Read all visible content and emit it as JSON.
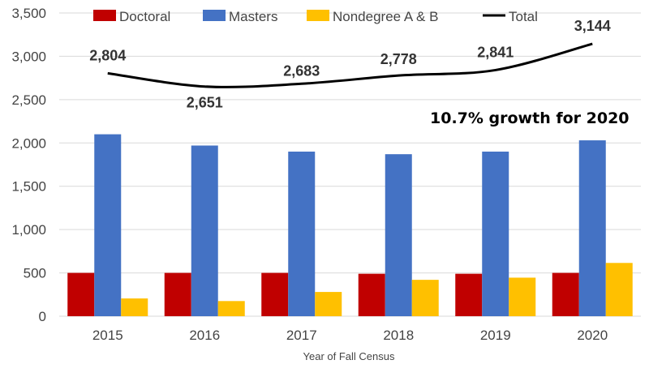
{
  "colors": {
    "doctoral": "#c00000",
    "masters": "#4472c4",
    "nondegree": "#ffc000",
    "total": "#000000",
    "grid": "#d9d9d9",
    "text": "#444444"
  },
  "chart_data": {
    "type": "bar",
    "title": "",
    "xlabel": "Year of Fall Census",
    "ylabel": "",
    "ylim": [
      0,
      3500
    ],
    "yticks": [
      0,
      500,
      1000,
      1500,
      2000,
      2500,
      3000,
      3500
    ],
    "ytick_labels": [
      "0",
      "500",
      "1,000",
      "1,500",
      "2,000",
      "2,500",
      "3,000",
      "3,500"
    ],
    "grid": true,
    "legend_position": "top",
    "categories": [
      "2015",
      "2016",
      "2017",
      "2018",
      "2019",
      "2020"
    ],
    "series": [
      {
        "name": "Doctoral",
        "type": "bar",
        "values": [
          500,
          500,
          500,
          490,
          490,
          500
        ]
      },
      {
        "name": "Masters",
        "type": "bar",
        "values": [
          2100,
          1970,
          1900,
          1870,
          1900,
          2030
        ]
      },
      {
        "name": "Nondegree A & B",
        "type": "bar",
        "values": [
          205,
          175,
          280,
          420,
          445,
          615
        ]
      },
      {
        "name": "Total",
        "type": "line",
        "values": [
          2804,
          2651,
          2683,
          2778,
          2841,
          3144
        ],
        "labels": [
          "2,804",
          "2,651",
          "2,683",
          "2,778",
          "2,841",
          "3,144"
        ]
      }
    ],
    "annotations": [
      "10.7% growth for 2020"
    ]
  }
}
